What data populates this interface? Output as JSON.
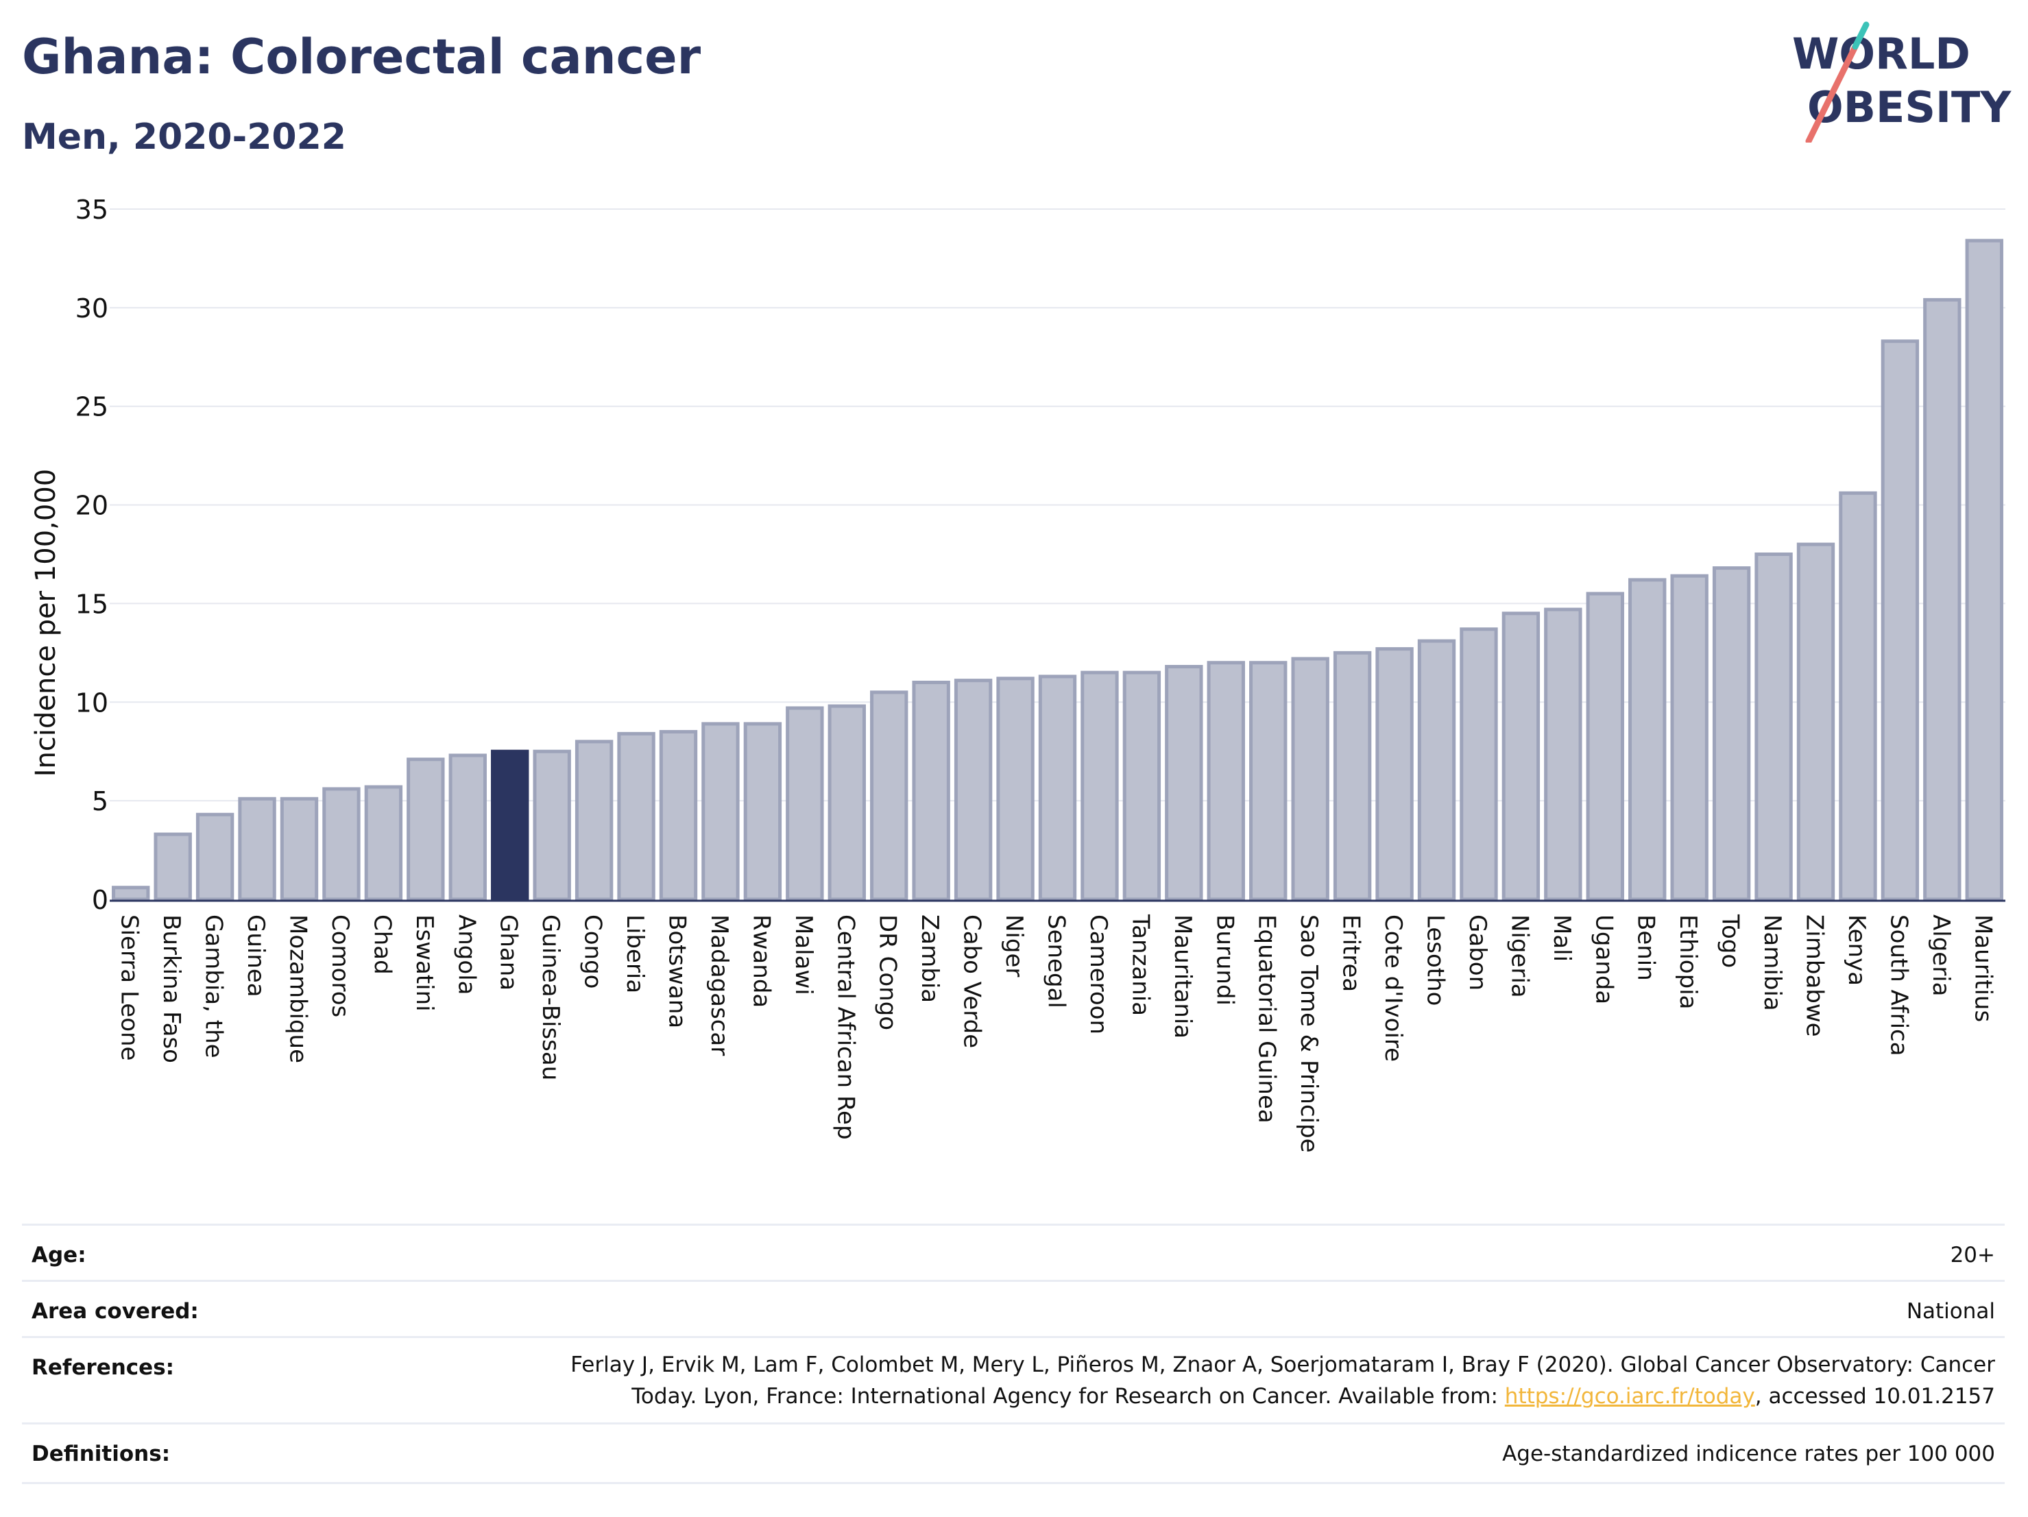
{
  "header": {
    "title": "Ghana: Colorectal cancer",
    "subtitle": "Men, 2020-2022"
  },
  "logo": {
    "line1": "WORLD",
    "line2": "OBESITY",
    "colors": {
      "text": "#2b3560",
      "slash_red": "#e8716b",
      "slash_teal": "#3cc3b8"
    }
  },
  "chart_data": {
    "type": "bar",
    "title": "Ghana: Colorectal cancer",
    "subtitle": "Men, 2020-2022",
    "xlabel": "",
    "ylabel": "Incidence per 100,000",
    "ylim": [
      0,
      35
    ],
    "yticks": [
      0,
      5,
      10,
      15,
      20,
      25,
      30,
      35
    ],
    "grid": true,
    "highlight": "Ghana",
    "colors": {
      "bar": "#bcc0cf",
      "bar_edge": "#9da3ba",
      "highlight": "#2b3560",
      "grid": "#e6e8ef",
      "axis": "#2b3560"
    },
    "categories": [
      "Sierra Leone",
      "Burkina Faso",
      "Gambia, the",
      "Guinea",
      "Mozambique",
      "Comoros",
      "Chad",
      "Eswatini",
      "Angola",
      "Ghana",
      "Guinea-Bissau",
      "Congo",
      "Liberia",
      "Botswana",
      "Madagascar",
      "Rwanda",
      "Malawi",
      "Central African Rep",
      "DR Congo",
      "Zambia",
      "Cabo Verde",
      "Niger",
      "Senegal",
      "Cameroon",
      "Tanzania",
      "Mauritania",
      "Burundi",
      "Equatorial Guinea",
      "Sao Tome & Principe",
      "Eritrea",
      "Cote d'Ivoire",
      "Lesotho",
      "Gabon",
      "Nigeria",
      "Mali",
      "Uganda",
      "Benin",
      "Ethiopia",
      "Togo",
      "Namibia",
      "Zimbabwe",
      "Kenya",
      "South Africa",
      "Algeria",
      "Mauritius"
    ],
    "values": [
      0.6,
      3.3,
      4.3,
      5.1,
      5.1,
      5.6,
      5.7,
      7.1,
      7.3,
      7.5,
      7.5,
      8.0,
      8.4,
      8.5,
      8.9,
      8.9,
      9.7,
      9.8,
      10.5,
      11.0,
      11.1,
      11.2,
      11.3,
      11.5,
      11.5,
      11.8,
      12.0,
      12.0,
      12.2,
      12.5,
      12.7,
      13.1,
      13.7,
      14.5,
      14.7,
      15.5,
      16.2,
      16.4,
      16.8,
      17.5,
      18.0,
      20.6,
      28.3,
      30.4,
      33.4
    ]
  },
  "info": {
    "rows": [
      {
        "label": "Age:",
        "value": "20+"
      },
      {
        "label": "Area covered:",
        "value": "National"
      },
      {
        "label": "References:",
        "value_line1": "Ferlay J, Ervik M, Lam F, Colombet M, Mery L, Piñeros M, Znaor A, Soerjomataram I, Bray F (2020). Global Cancer Observatory: Cancer",
        "value_line2_pre": "Today. Lyon, France: International Agency for Research on Cancer. Available from: ",
        "value_link": "https://gco.iarc.fr/today",
        "value_line2_post": ", accessed 10.01.2157"
      },
      {
        "label": "Definitions:",
        "value": "Age-standardized indicence rates per 100 000"
      }
    ]
  }
}
